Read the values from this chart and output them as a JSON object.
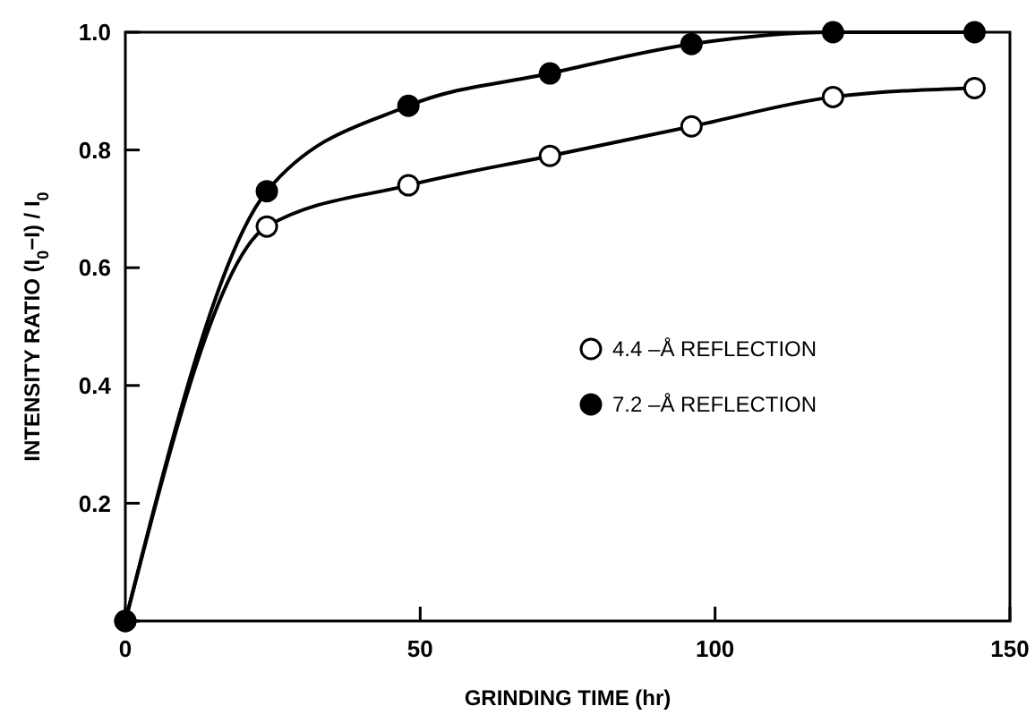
{
  "chart_data": {
    "type": "line",
    "xlabel": "GRINDING TIME (hr)",
    "ylabel": "INTENSITY RATIO (I$_{0}$−I) / I$_{0}$",
    "x": [
      0,
      24,
      48,
      72,
      96,
      120,
      144
    ],
    "series": [
      {
        "name": "4.4 –Å REFLECTION",
        "color": "#000000",
        "values": [
          0,
          0.67,
          0.74,
          0.79,
          0.84,
          0.89,
          0.905
        ]
      },
      {
        "name": "7.2 –Å REFLECTION",
        "color": "#000000",
        "values": [
          0,
          0.73,
          0.875,
          0.93,
          0.98,
          1.0,
          1.0
        ]
      }
    ],
    "xlim": [
      0,
      150
    ],
    "xticks": [
      0,
      50,
      100,
      150
    ],
    "ylim": [
      0,
      1
    ],
    "yticks": [
      {
        "value": 0,
        "label": null
      },
      0.2,
      0.4,
      0.6,
      0.8,
      {
        "value": 1,
        "label": "1.0"
      }
    ],
    "grid": false,
    "legend": "right",
    "marker": "circle",
    "line_style": "solid"
  }
}
